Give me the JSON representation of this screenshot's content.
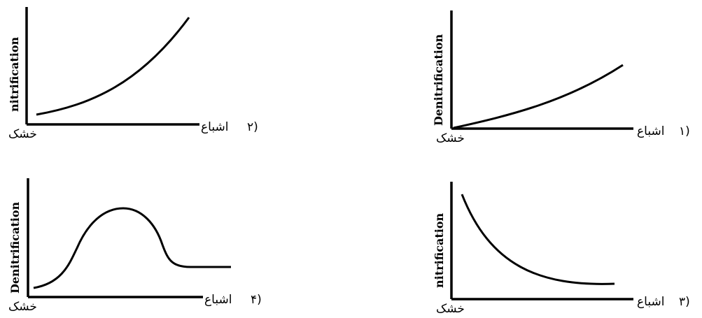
{
  "panels": [
    {
      "number": "۱)",
      "ylabel": "Denitrification",
      "x_low_label": "خشک",
      "x_high_label": "اشباع",
      "curve": "increasing-convex-gentle"
    },
    {
      "number": "۲)",
      "ylabel": "nitrification",
      "x_low_label": "خشک",
      "x_high_label": "اشباع",
      "curve": "increasing-convex-steep"
    },
    {
      "number": "۳)",
      "ylabel": "nitrification",
      "x_low_label": "خشک",
      "x_high_label": "اشباع",
      "curve": "decreasing-convex"
    },
    {
      "number": "۴)",
      "ylabel": "Denitrification",
      "x_low_label": "خشک",
      "x_high_label": "اشباع",
      "curve": "bell-then-plateau"
    }
  ]
}
